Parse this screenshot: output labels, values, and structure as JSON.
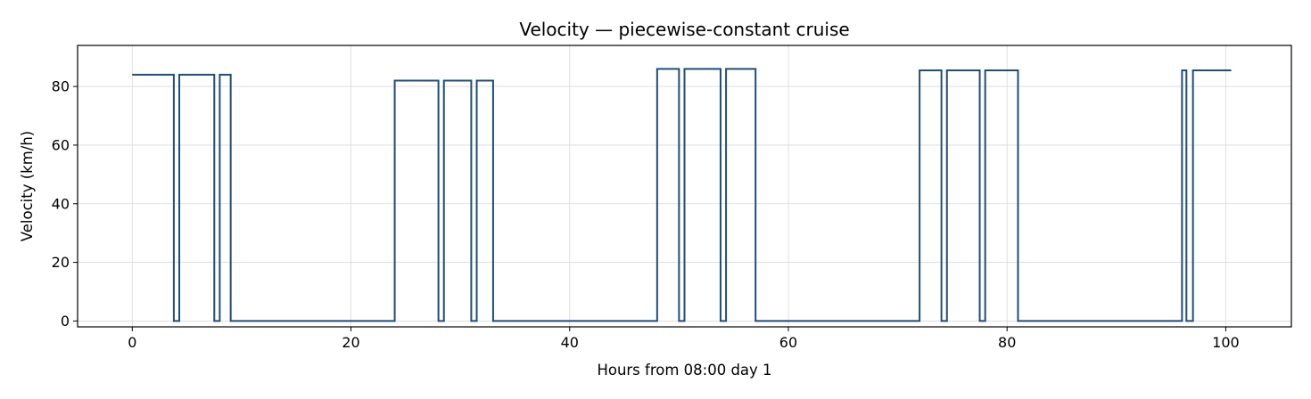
{
  "chart_data": {
    "type": "line",
    "step": "post",
    "title": "Velocity — piecewise-constant cruise",
    "xlabel": "Hours from 08:00 day 1",
    "ylabel": "Velocity (km/h)",
    "xlim": [
      -5,
      106
    ],
    "ylim": [
      -2,
      94
    ],
    "xticks": [
      0,
      20,
      40,
      60,
      80,
      100
    ],
    "yticks": [
      0,
      20,
      40,
      60,
      80
    ],
    "grid": true,
    "line_color": "#1f4e79",
    "series": [
      {
        "x": [
          0,
          3.8,
          4.3,
          7.5,
          8.0,
          9.0,
          24.0,
          28.0,
          28.5,
          31.0,
          31.5,
          33.0,
          48.0,
          50.0,
          50.5,
          53.8,
          54.3,
          57.0,
          72.0,
          74.0,
          74.5,
          77.5,
          78.0,
          81.0,
          96.0,
          96.4,
          96.6,
          97.0,
          100.5
        ],
        "y": [
          84,
          0,
          84,
          0,
          84,
          0,
          82,
          0,
          82,
          0,
          82,
          0,
          86,
          0,
          86,
          0,
          86,
          0,
          85.5,
          0,
          85.5,
          0,
          85.5,
          0,
          85.5,
          0,
          0,
          85.5,
          85.5
        ]
      }
    ]
  }
}
